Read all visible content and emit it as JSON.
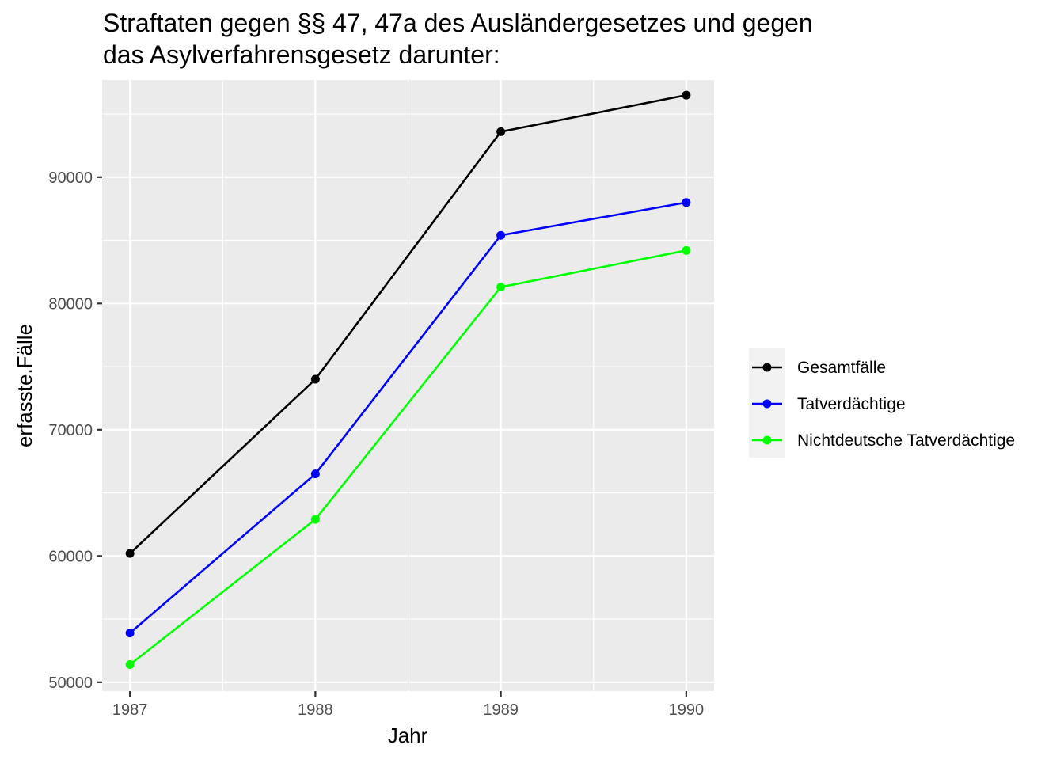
{
  "chart_data": {
    "type": "line",
    "title_lines": [
      "Straftaten gegen §§ 47, 47a des Ausländergesetzes und gegen",
      "das Asylverfahrensgesetz darunter:"
    ],
    "xlabel": "Jahr",
    "ylabel": "erfasste.Fälle",
    "x": [
      1987,
      1988,
      1989,
      1990
    ],
    "x_ticks": [
      "1987",
      "1988",
      "1989",
      "1990"
    ],
    "y_ticks": [
      50000,
      60000,
      70000,
      80000,
      90000
    ],
    "y_tick_labels": [
      "50000",
      "60000",
      "70000",
      "80000",
      "90000"
    ],
    "xlim": [
      1986.85,
      1990.15
    ],
    "ylim": [
      49300,
      97700
    ],
    "grid": true,
    "legend_position": "right",
    "series": [
      {
        "name": "Gesamtfälle",
        "color": "#000000",
        "values": [
          60200,
          74000,
          93600,
          96500
        ]
      },
      {
        "name": "Tatverdächtige",
        "color": "#0000ff",
        "values": [
          53900,
          66500,
          85400,
          88000
        ]
      },
      {
        "name": "Nichtdeutsche Tatverdächtige",
        "color": "#00ff00",
        "values": [
          51400,
          62900,
          81300,
          84200
        ]
      }
    ]
  }
}
